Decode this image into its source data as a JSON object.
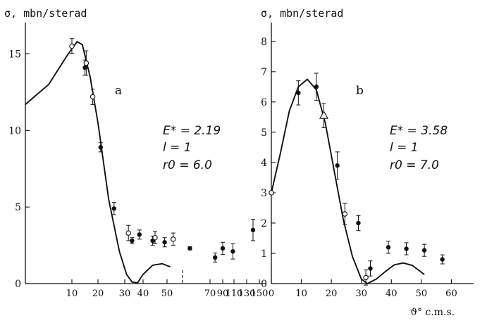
{
  "chart_data": [
    {
      "type": "scatter",
      "panel_label": "a",
      "ylabel": "σ, mbn/sterad",
      "ylim": [
        0,
        17
      ],
      "yticks": [
        0,
        5,
        10,
        15
      ],
      "xticks": [
        "10",
        "20",
        "30",
        "40",
        "50",
        "70",
        "90",
        "110",
        "130",
        "150"
      ],
      "annotation": [
        "E* = 2.19",
        "l = 1",
        "r0 = 6.0"
      ],
      "series": [
        {
          "kind": "points-filled",
          "x": [
            15,
            21,
            26,
            34,
            38,
            44,
            49,
            59,
            78,
            90,
            108,
            140
          ],
          "y": [
            14.1,
            8.9,
            4.9,
            2.8,
            3.2,
            2.8,
            2.7,
            2.3,
            1.7,
            2.3,
            2.1,
            3.5
          ],
          "err": [
            0.5,
            0.3,
            0.4,
            0.2,
            0.3,
            0.3,
            0.3,
            0.1,
            0.3,
            0.4,
            0.5,
            0.7
          ]
        },
        {
          "kind": "points-open",
          "x": [
            10,
            15.5,
            18,
            32,
            45,
            52
          ],
          "y": [
            15.5,
            14.4,
            12.2,
            3.3,
            3.0,
            2.9
          ],
          "err": [
            0.5,
            0.8,
            0.5,
            0.5,
            0.4,
            0.4
          ]
        },
        {
          "kind": "fit-curve",
          "x": [
            0,
            5,
            9,
            12,
            14,
            17,
            20,
            24,
            28,
            31,
            34,
            37,
            40,
            44,
            48,
            51
          ],
          "y": [
            11.7,
            13.0,
            14.9,
            15.8,
            15.6,
            13.5,
            10.5,
            5.5,
            2.1,
            0.6,
            0.1,
            0.05,
            0.6,
            1.2,
            1.3,
            1.1
          ]
        }
      ]
    },
    {
      "type": "scatter",
      "panel_label": "b",
      "ylabel": "σ, mbn/sterad",
      "ylim": [
        0,
        8.6
      ],
      "yticks": [
        0,
        1,
        2,
        3,
        4,
        5,
        6,
        7,
        8
      ],
      "xticks": [
        "0",
        "10",
        "20",
        "30",
        "40",
        "50",
        "60"
      ],
      "xlabel": "ϑ° c.m.s.",
      "xlim": [
        0,
        66
      ],
      "annotation": [
        "E* = 3.58",
        "l = 1",
        "r0 = 7.0"
      ],
      "series": [
        {
          "kind": "points-filled",
          "x": [
            9,
            15,
            22,
            29,
            33,
            39,
            45,
            51,
            57
          ],
          "y": [
            6.3,
            6.5,
            3.9,
            2.0,
            0.5,
            1.2,
            1.15,
            1.1,
            0.8
          ],
          "err": [
            0.4,
            0.45,
            0.45,
            0.25,
            0.25,
            0.2,
            0.2,
            0.2,
            0.15
          ]
        },
        {
          "kind": "points-open",
          "x": [
            0,
            24.5,
            31.5
          ],
          "y": [
            3.0,
            2.3,
            0.2
          ],
          "err": [
            0,
            0.35,
            0.25
          ]
        },
        {
          "kind": "triangle",
          "x": [
            17.5
          ],
          "y": [
            5.55
          ],
          "err": [
            0.4
          ]
        },
        {
          "kind": "fit-curve",
          "x": [
            0,
            3,
            6,
            9,
            12,
            15,
            18,
            21,
            24,
            27,
            30,
            32,
            35,
            38,
            41,
            44,
            47,
            51
          ],
          "y": [
            3.0,
            4.3,
            5.7,
            6.5,
            6.75,
            6.4,
            5.3,
            3.7,
            2.1,
            0.9,
            0.15,
            0.0,
            0.15,
            0.4,
            0.62,
            0.68,
            0.6,
            0.3
          ]
        }
      ]
    }
  ]
}
